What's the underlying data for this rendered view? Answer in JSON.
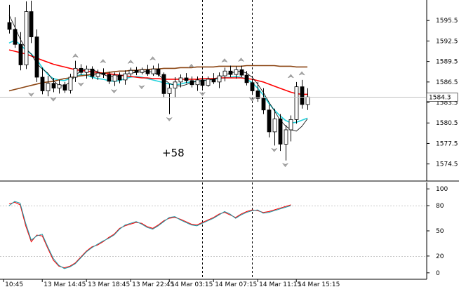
{
  "chart_data": [
    {
      "type": "candlestick",
      "panel": "price",
      "ylim": [
        1572.0,
        1598.5
      ],
      "yticks": [
        1595.5,
        1592.5,
        1589.5,
        1586.5,
        1583.5,
        1580.5,
        1577.5,
        1574.5
      ],
      "ytick_labels": [
        "1595.5",
        "1592.5",
        "1589.5",
        "1586.5",
        "1583.5",
        "1580.5",
        "1577.5",
        "1574.5"
      ],
      "current_price": 1584.3,
      "current_price_label": "1584.3",
      "annotation": "+58",
      "series": [
        {
          "type": "candlestick",
          "candles": [
            [
              1595.2,
              1597.8,
              1593.6,
              1594.2
            ],
            [
              1594.2,
              1596.0,
              1591.5,
              1592.0
            ],
            [
              1592.0,
              1593.8,
              1588.2,
              1589.0
            ],
            [
              1589.0,
              1598.3,
              1588.4,
              1596.8
            ],
            [
              1596.8,
              1598.4,
              1592.2,
              1593.1
            ],
            [
              1593.1,
              1594.2,
              1586.5,
              1587.2
            ],
            [
              1587.2,
              1588.6,
              1584.7,
              1585.2
            ],
            [
              1585.2,
              1587.4,
              1584.4,
              1586.3
            ],
            [
              1586.3,
              1587.1,
              1585.0,
              1585.6
            ],
            [
              1585.6,
              1586.8,
              1584.8,
              1586.1
            ],
            [
              1586.1,
              1586.5,
              1584.9,
              1585.3
            ],
            [
              1585.3,
              1587.7,
              1584.8,
              1587.2
            ],
            [
              1587.2,
              1589.6,
              1586.5,
              1588.5
            ],
            [
              1588.5,
              1589.1,
              1587.5,
              1587.9
            ],
            [
              1587.9,
              1588.9,
              1587.0,
              1588.4
            ],
            [
              1588.4,
              1588.8,
              1586.9,
              1587.3
            ],
            [
              1587.3,
              1588.3,
              1586.8,
              1587.8
            ],
            [
              1587.8,
              1588.5,
              1587.1,
              1587.6
            ],
            [
              1587.6,
              1588.0,
              1586.2,
              1586.6
            ],
            [
              1586.6,
              1587.9,
              1585.9,
              1587.5
            ],
            [
              1587.5,
              1587.9,
              1586.3,
              1586.8
            ],
            [
              1586.8,
              1588.2,
              1586.1,
              1587.7
            ],
            [
              1587.7,
              1588.6,
              1587.3,
              1588.2
            ],
            [
              1588.2,
              1588.7,
              1587.5,
              1587.9
            ],
            [
              1587.9,
              1588.6,
              1587.6,
              1588.3
            ],
            [
              1588.3,
              1589.0,
              1587.4,
              1587.7
            ],
            [
              1587.7,
              1588.9,
              1587.4,
              1588.4
            ],
            [
              1588.4,
              1589.2,
              1587.3,
              1587.6
            ],
            [
              1587.6,
              1587.9,
              1584.2,
              1584.8
            ],
            [
              1584.8,
              1586.2,
              1581.8,
              1585.6
            ],
            [
              1585.6,
              1587.2,
              1584.2,
              1586.5
            ],
            [
              1586.5,
              1587.6,
              1585.7,
              1587.1
            ],
            [
              1587.1,
              1587.8,
              1586.3,
              1586.7
            ],
            [
              1586.7,
              1587.3,
              1585.7,
              1586.1
            ],
            [
              1586.1,
              1587.3,
              1585.2,
              1586.8
            ],
            [
              1586.8,
              1587.4,
              1585.6,
              1586.0
            ],
            [
              1586.0,
              1587.3,
              1585.8,
              1586.9
            ],
            [
              1586.9,
              1587.8,
              1586.2,
              1586.5
            ],
            [
              1586.5,
              1587.9,
              1585.6,
              1587.4
            ],
            [
              1587.4,
              1588.6,
              1586.6,
              1588.1
            ],
            [
              1588.1,
              1588.9,
              1587.2,
              1587.6
            ],
            [
              1587.6,
              1588.8,
              1587.0,
              1588.3
            ],
            [
              1588.3,
              1588.9,
              1587.2,
              1587.5
            ],
            [
              1587.5,
              1588.1,
              1586.0,
              1586.4
            ],
            [
              1586.4,
              1587.0,
              1584.6,
              1585.2
            ],
            [
              1585.2,
              1586.5,
              1583.6,
              1584.1
            ],
            [
              1584.1,
              1585.6,
              1581.8,
              1582.4
            ],
            [
              1582.4,
              1583.2,
              1578.4,
              1579.2
            ],
            [
              1579.2,
              1582.6,
              1577.2,
              1581.1
            ],
            [
              1581.1,
              1581.8,
              1576.4,
              1577.4
            ],
            [
              1577.4,
              1580.2,
              1575.0,
              1579.5
            ],
            [
              1579.5,
              1581.6,
              1577.8,
              1581.0
            ],
            [
              1581.0,
              1586.5,
              1580.4,
              1585.8
            ],
            [
              1585.8,
              1586.8,
              1582.6,
              1583.2
            ],
            [
              1583.2,
              1585.6,
              1582.4,
              1584.3
            ]
          ]
        },
        {
          "type": "line",
          "color": "#22d3dd",
          "values": [
            1592.2,
            1592.6,
            1592.0,
            1591.2,
            1590.6,
            1589.8,
            1588.6,
            1587.6,
            1587.0,
            1586.8,
            1586.7,
            1587.0,
            1587.3,
            1587.6,
            1587.5,
            1587.2,
            1587.0,
            1586.9,
            1586.7,
            1586.6,
            1586.7,
            1587.0,
            1587.2,
            1587.3,
            1587.2,
            1587.0,
            1586.8,
            1586.6,
            1586.4,
            1586.2,
            1586.1,
            1586.2,
            1586.4,
            1586.5,
            1586.6,
            1586.7,
            1586.8,
            1586.9,
            1587.0,
            1587.1,
            1587.2,
            1587.3,
            1587.2,
            1586.9,
            1586.4,
            1585.6,
            1584.6,
            1583.4,
            1582.4,
            1581.6,
            1580.9,
            1580.5,
            1580.6,
            1580.9,
            1581.2
          ]
        },
        {
          "type": "line",
          "color": "#ff0000",
          "values": [
            1591.2,
            1591.0,
            1590.8,
            1590.6,
            1590.3,
            1590.0,
            1589.7,
            1589.4,
            1589.1,
            1588.9,
            1588.7,
            1588.5,
            1588.3,
            1588.2,
            1588.1,
            1588.0,
            1587.9,
            1587.8,
            1587.7,
            1587.6,
            1587.5,
            1587.4,
            1587.3,
            1587.2,
            1587.1,
            1587.1,
            1587.0,
            1587.0,
            1586.9,
            1586.9,
            1586.9,
            1586.9,
            1586.9,
            1586.9,
            1586.9,
            1587.0,
            1587.0,
            1587.0,
            1587.1,
            1587.1,
            1587.1,
            1587.1,
            1587.1,
            1587.0,
            1586.9,
            1586.7,
            1586.5,
            1586.2,
            1585.9,
            1585.6,
            1585.3,
            1585.0,
            1584.8,
            1584.7,
            1584.7
          ]
        },
        {
          "type": "line",
          "color": "#8b4513",
          "values": [
            1585.2,
            1585.4,
            1585.6,
            1585.8,
            1586.0,
            1586.2,
            1586.4,
            1586.5,
            1586.6,
            1586.8,
            1587.0,
            1587.1,
            1587.3,
            1587.4,
            1587.5,
            1587.6,
            1587.7,
            1587.8,
            1587.9,
            1588.0,
            1588.1,
            1588.1,
            1588.2,
            1588.2,
            1588.3,
            1588.3,
            1588.4,
            1588.4,
            1588.5,
            1588.5,
            1588.5,
            1588.6,
            1588.6,
            1588.6,
            1588.7,
            1588.7,
            1588.7,
            1588.7,
            1588.8,
            1588.8,
            1588.8,
            1588.8,
            1588.8,
            1588.9,
            1588.9,
            1588.9,
            1588.9,
            1588.9,
            1588.9,
            1588.8,
            1588.8,
            1588.8,
            1588.7,
            1588.7,
            1588.7
          ]
        },
        {
          "type": "line",
          "color": "#000000",
          "name": "",
          "values": [
            1596.3,
            1594.6,
            1592.8,
            1591.4,
            1590.6,
            1589.2,
            1588.4,
            1587.8,
            1586.7,
            1586.0,
            1585.9,
            1586.5,
            1587.4,
            1588.2,
            1588.4,
            1588.3,
            1588.0,
            1587.6,
            1587.3,
            1587.3,
            1587.4,
            1587.6,
            1587.8,
            1587.9,
            1588.0,
            1588.1,
            1587.9,
            1587.6,
            1586.9,
            1586.3,
            1586.0,
            1585.9,
            1586.1,
            1586.4,
            1586.6,
            1586.7,
            1586.8,
            1586.9,
            1587.2,
            1587.5,
            1587.8,
            1588.0,
            1588.1,
            1587.8,
            1587.2,
            1586.2,
            1585.0,
            1583.6,
            1582.3,
            1581.0,
            1580.1,
            1579.5,
            1579.3,
            1580.0,
            1581.1
          ]
        }
      ],
      "fractal_arrows_up": [
        [
          6,
          1598.3
        ],
        [
          12,
          1589.8
        ],
        [
          17,
          1589.0
        ],
        [
          22,
          1588.9
        ],
        [
          26,
          1589.4
        ],
        [
          33,
          1588.3
        ],
        [
          39,
          1589.1
        ],
        [
          42,
          1589.2
        ],
        [
          51,
          1586.8
        ],
        [
          53,
          1587.2
        ]
      ],
      "fractal_arrows_down": [
        [
          4,
          1585.2
        ],
        [
          8,
          1584.5
        ],
        [
          13,
          1586.7
        ],
        [
          19,
          1585.7
        ],
        [
          24,
          1586.3
        ],
        [
          29,
          1581.6
        ],
        [
          35,
          1585.3
        ],
        [
          44,
          1584.5
        ],
        [
          48,
          1577.1
        ],
        [
          50,
          1574.9
        ]
      ],
      "vlines_dotted_at": [
        35,
        44
      ]
    },
    {
      "type": "line",
      "panel": "oscillator",
      "ylim": [
        -6,
        106
      ],
      "yticks": [
        100,
        80,
        50,
        20,
        0
      ],
      "ytick_labels": [
        "100",
        "80",
        "50",
        "20",
        "0"
      ],
      "levels": [
        80,
        20
      ],
      "series": [
        {
          "color": "#ff0000",
          "values": [
            82,
            84,
            81,
            56,
            37,
            45,
            44,
            29,
            15,
            8,
            6,
            8,
            12,
            19,
            26,
            31,
            33,
            37,
            42,
            46,
            53,
            56,
            58,
            60,
            59,
            55,
            53,
            57,
            62,
            65,
            66,
            64,
            61,
            58,
            57,
            60,
            63,
            66,
            70,
            72,
            69,
            66,
            70,
            73,
            75,
            74,
            72,
            73,
            75,
            77,
            79,
            81
          ]
        },
        {
          "color": "#1a9aa8",
          "values": [
            80,
            85,
            83,
            59,
            39,
            44,
            46,
            31,
            17,
            9,
            5,
            7,
            11,
            18,
            25,
            30,
            34,
            38,
            41,
            45,
            52,
            57,
            59,
            61,
            58,
            54,
            52,
            56,
            61,
            66,
            67,
            63,
            60,
            57,
            56,
            59,
            62,
            65,
            69,
            73,
            70,
            65,
            69,
            72,
            74,
            75,
            71,
            72,
            74,
            76,
            78,
            80
          ]
        }
      ]
    }
  ],
  "x_axis": {
    "labels": [
      "10:45",
      "13 Mar 14:45",
      "13 Mar 18:45",
      "13 Mar 22:45",
      "14 Mar 03:15",
      "14 Mar 07:15",
      "14 Mar 11:15",
      "14 Mar 15:15"
    ],
    "label_x_candle": [
      -1,
      6,
      14,
      22,
      29,
      37,
      45,
      52
    ]
  },
  "colors": {
    "background": "#ffffff",
    "candle_up": "#ffffff",
    "candle_down": "#000000",
    "price_line": "#c0c0c0",
    "price_tag_bg": "#ffffff",
    "grid": "#000000"
  }
}
